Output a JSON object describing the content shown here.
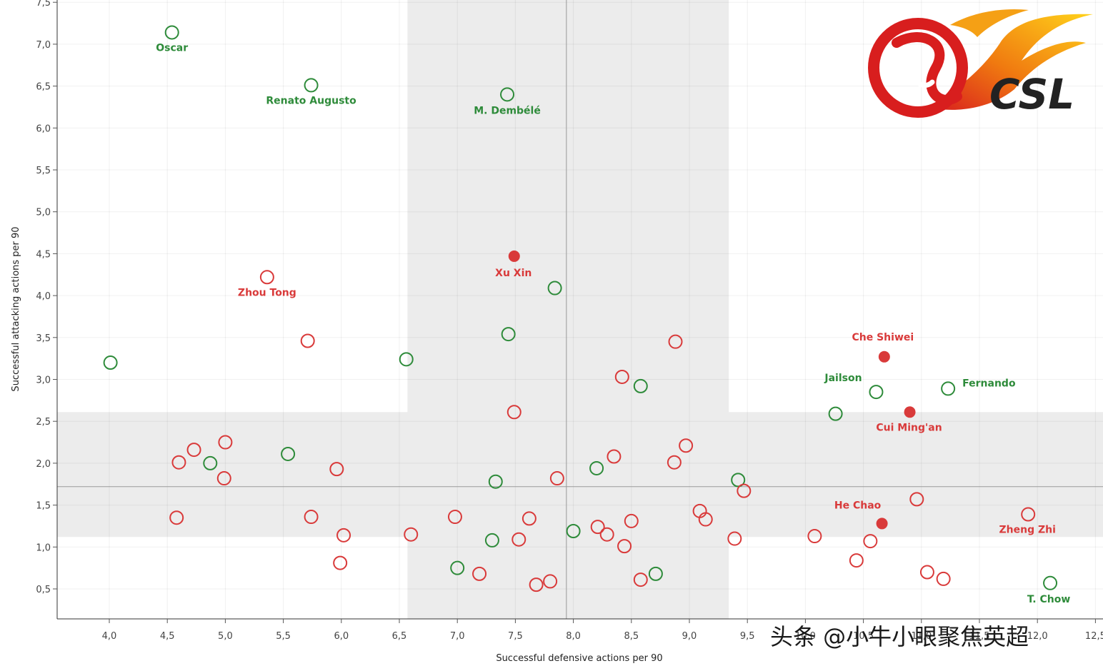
{
  "chart_data": {
    "type": "scatter",
    "xlabel": "Successful defensive actions per 90",
    "ylabel": "Successful attacking actions per 90",
    "xlim": [
      3.55,
      12.6
    ],
    "ylim": [
      0.14,
      7.55
    ],
    "x_ticks": [
      "4,0",
      "4,5",
      "5,0",
      "5,5",
      "6,0",
      "6,5",
      "7,0",
      "7,5",
      "8,0",
      "8,5",
      "9,0",
      "9,5",
      "10,0",
      "10,5",
      "11,0",
      "11,5",
      "12,0",
      "12,5"
    ],
    "x_tick_values": [
      4.0,
      4.5,
      5.0,
      5.5,
      6.0,
      6.5,
      7.0,
      7.5,
      8.0,
      8.5,
      9.0,
      9.5,
      10.0,
      10.5,
      11.0,
      11.5,
      12.0,
      12.5
    ],
    "y_ticks": [
      "0,5",
      "1,0",
      "1,5",
      "2,0",
      "2,5",
      "3,0",
      "3,5",
      "4,0",
      "4,5",
      "5,0",
      "5,5",
      "6,0",
      "6,5",
      "7,0",
      "7,5"
    ],
    "y_tick_values": [
      0.5,
      1.0,
      1.5,
      2.0,
      2.5,
      3.0,
      3.5,
      4.0,
      4.5,
      5.0,
      5.5,
      6.0,
      6.5,
      7.0,
      7.5
    ],
    "grid": true,
    "mean_x": 7.94,
    "mean_y": 1.72,
    "shaded_x_band": [
      6.57,
      9.34
    ],
    "shaded_y_band": [
      1.12,
      2.61
    ],
    "colors": {
      "green": "#2e8b3a",
      "red": "#d93a3a",
      "band": "#ececec",
      "meanline": "#999999"
    },
    "series": [
      {
        "color": "green",
        "points": [
          {
            "x": 4.54,
            "y": 7.14,
            "label": "Oscar"
          },
          {
            "x": 5.74,
            "y": 6.51,
            "label": "Renato Augusto"
          },
          {
            "x": 7.43,
            "y": 6.4,
            "label": "M. Dembélé"
          },
          {
            "x": 4.01,
            "y": 3.2
          },
          {
            "x": 6.56,
            "y": 3.24
          },
          {
            "x": 7.44,
            "y": 3.54
          },
          {
            "x": 7.84,
            "y": 4.09
          },
          {
            "x": 8.58,
            "y": 2.92
          },
          {
            "x": 10.26,
            "y": 2.59
          },
          {
            "x": 10.61,
            "y": 2.85,
            "label": "Jailson"
          },
          {
            "x": 11.23,
            "y": 2.89,
            "label": "Fernando"
          },
          {
            "x": 4.87,
            "y": 2.0
          },
          {
            "x": 5.54,
            "y": 2.11
          },
          {
            "x": 7.33,
            "y": 1.78
          },
          {
            "x": 8.2,
            "y": 1.94
          },
          {
            "x": 9.42,
            "y": 1.8
          },
          {
            "x": 7.3,
            "y": 1.08
          },
          {
            "x": 8.0,
            "y": 1.19
          },
          {
            "x": 7.0,
            "y": 0.75
          },
          {
            "x": 8.71,
            "y": 0.68
          },
          {
            "x": 12.11,
            "y": 0.57,
            "label": "T. Chow"
          }
        ]
      },
      {
        "color": "red",
        "points": [
          {
            "x": 7.49,
            "y": 4.47,
            "label": "Xu Xin",
            "filled": true
          },
          {
            "x": 5.36,
            "y": 4.22,
            "label": "Zhou Tong"
          },
          {
            "x": 5.71,
            "y": 3.46
          },
          {
            "x": 8.88,
            "y": 3.45
          },
          {
            "x": 8.42,
            "y": 3.03
          },
          {
            "x": 7.49,
            "y": 2.61
          },
          {
            "x": 10.68,
            "y": 3.27,
            "label": "Che Shiwei",
            "filled": true
          },
          {
            "x": 10.9,
            "y": 2.61,
            "label": "Cui Ming'an",
            "filled": true
          },
          {
            "x": 4.6,
            "y": 2.01
          },
          {
            "x": 4.73,
            "y": 2.16
          },
          {
            "x": 5.0,
            "y": 2.25
          },
          {
            "x": 4.99,
            "y": 1.82
          },
          {
            "x": 5.96,
            "y": 1.93
          },
          {
            "x": 8.35,
            "y": 2.08
          },
          {
            "x": 8.97,
            "y": 2.21
          },
          {
            "x": 8.87,
            "y": 2.01
          },
          {
            "x": 7.86,
            "y": 1.82
          },
          {
            "x": 9.47,
            "y": 1.67
          },
          {
            "x": 4.58,
            "y": 1.35
          },
          {
            "x": 5.74,
            "y": 1.36
          },
          {
            "x": 6.02,
            "y": 1.14
          },
          {
            "x": 6.6,
            "y": 1.15
          },
          {
            "x": 6.98,
            "y": 1.36
          },
          {
            "x": 7.62,
            "y": 1.34
          },
          {
            "x": 7.53,
            "y": 1.09
          },
          {
            "x": 8.21,
            "y": 1.24
          },
          {
            "x": 8.29,
            "y": 1.15
          },
          {
            "x": 8.5,
            "y": 1.31
          },
          {
            "x": 8.44,
            "y": 1.01
          },
          {
            "x": 9.09,
            "y": 1.43
          },
          {
            "x": 9.14,
            "y": 1.33
          },
          {
            "x": 9.39,
            "y": 1.1
          },
          {
            "x": 10.08,
            "y": 1.13
          },
          {
            "x": 10.56,
            "y": 1.07
          },
          {
            "x": 10.66,
            "y": 1.28,
            "label": "He Chao",
            "filled": true
          },
          {
            "x": 10.96,
            "y": 1.57
          },
          {
            "x": 11.92,
            "y": 1.39,
            "label": "Zheng Zhi"
          },
          {
            "x": 5.99,
            "y": 0.81
          },
          {
            "x": 7.19,
            "y": 0.68
          },
          {
            "x": 7.68,
            "y": 0.55
          },
          {
            "x": 7.8,
            "y": 0.59
          },
          {
            "x": 8.58,
            "y": 0.61
          },
          {
            "x": 10.44,
            "y": 0.84
          },
          {
            "x": 11.05,
            "y": 0.7
          },
          {
            "x": 11.19,
            "y": 0.62
          }
        ]
      }
    ]
  },
  "logo": {
    "text": "CSL"
  },
  "watermark": {
    "text": "头条 @小牛小眼聚焦英超"
  }
}
